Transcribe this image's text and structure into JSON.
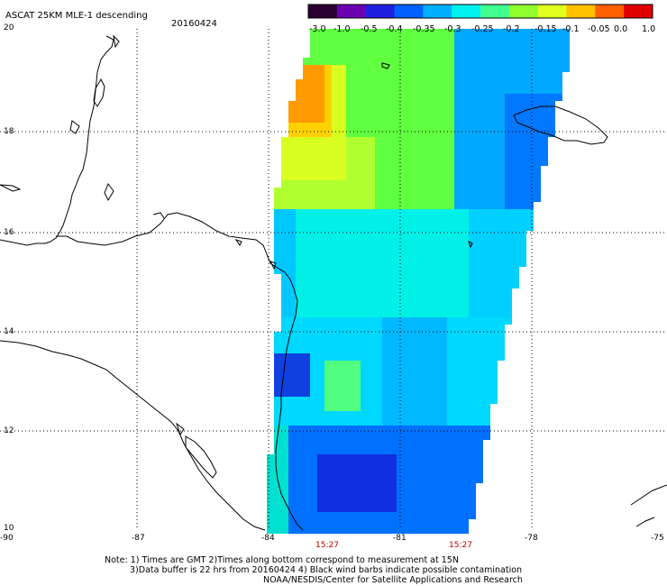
{
  "header": {
    "title": "ASCAT 25KM MLE-1 descending",
    "date": "20160424"
  },
  "colorbar": {
    "labels": [
      "-3.0",
      "-1.0",
      "-0.5",
      "-0.4",
      "-0.35",
      "-0.3",
      "-0.25",
      "-0.2",
      "-0.15",
      "-0.1",
      "-0.05",
      "0.0",
      "1.0"
    ],
    "colors": [
      "#2a0030",
      "#6a00b0",
      "#2020e0",
      "#0060ff",
      "#00b0ff",
      "#00f0f0",
      "#40ff90",
      "#90ff30",
      "#e0ff20",
      "#ffc000",
      "#ff6000",
      "#e00000"
    ]
  },
  "axes": {
    "lat_ticks": [
      "20",
      "18",
      "16",
      "14",
      "12",
      "10"
    ],
    "lon_ticks": [
      "-90",
      "-87",
      "-84",
      "-81",
      "-78",
      "-75"
    ]
  },
  "times": [
    "15:27",
    "15:27"
  ],
  "notes": [
    "Note: 1) Times are GMT 2)Times along bottom correspond to measurement at 15N",
    "3)Data buffer is 22 hrs from 20160424 4) Black wind barbs indicate possible contamination",
    "NOAA/NESDIS/Center for Satellite Applications and Research"
  ]
}
